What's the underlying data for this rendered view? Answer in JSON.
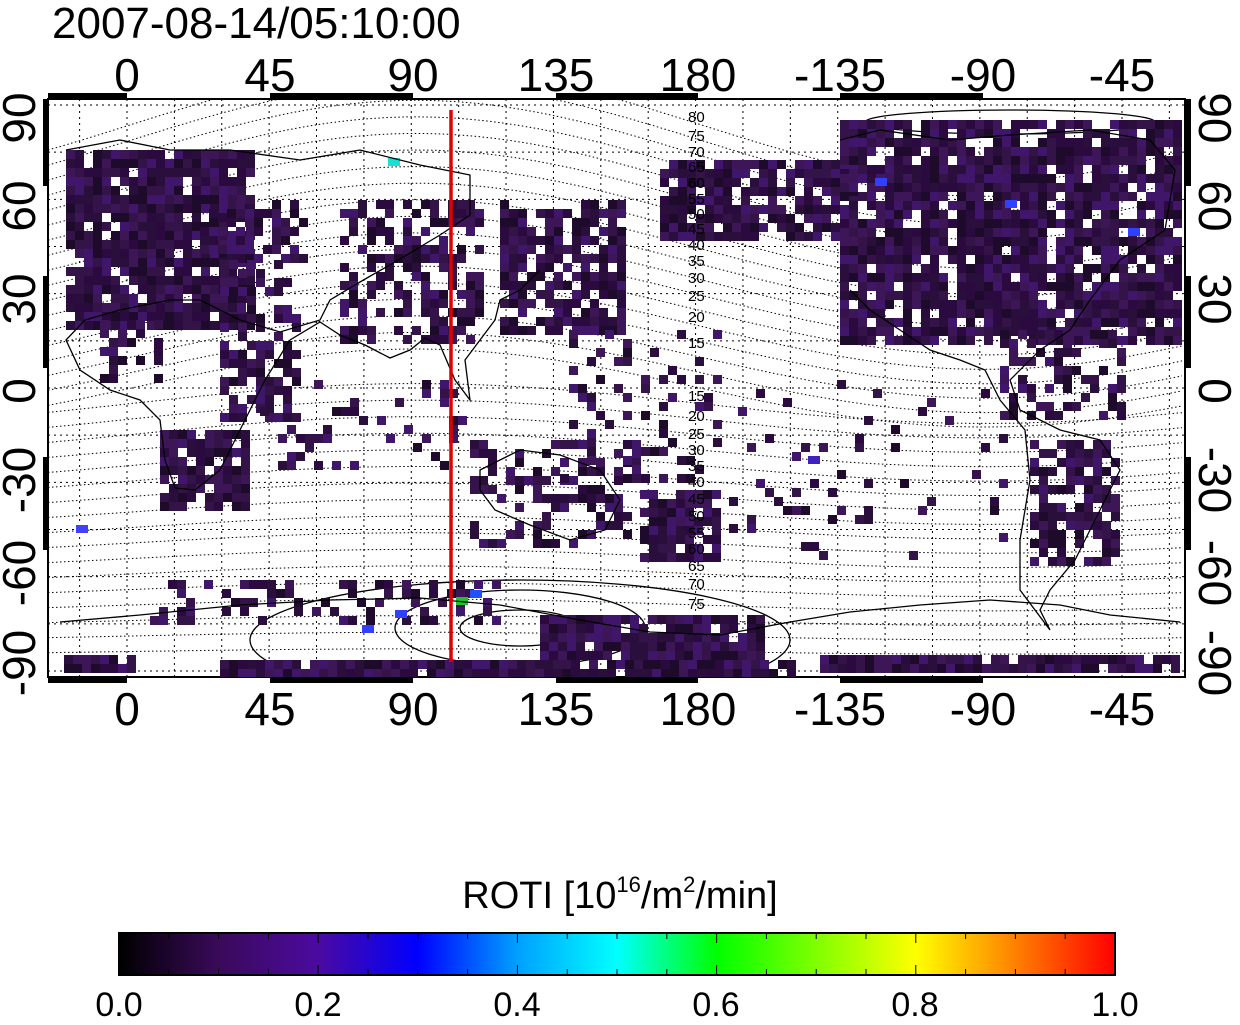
{
  "title": "2007-08-14/05:10:00",
  "map": {
    "top_ticks": [
      "0",
      "45",
      "90",
      "135",
      "180",
      "-135",
      "-90",
      "-45"
    ],
    "bottom_ticks": [
      "0",
      "45",
      "90",
      "135",
      "180",
      "-135",
      "-90",
      "-45"
    ],
    "left_ticks": [
      "90",
      "60",
      "30",
      "0",
      "-30",
      "-60",
      "-90"
    ],
    "right_ticks": [
      "90",
      "60",
      "30",
      "0",
      "-30",
      "-60",
      "-90"
    ],
    "magnetic_contour_labels": [
      "80",
      "75",
      "70",
      "65",
      "60",
      "55",
      "50",
      "45",
      "40",
      "35",
      "30",
      "25",
      "20",
      "15",
      "15",
      "20",
      "25",
      "30",
      "35",
      "40",
      "45",
      "50",
      "55",
      "60",
      "65",
      "70",
      "75"
    ],
    "meridian_marker_longitude": 102,
    "marker_color": "#e00000"
  },
  "colorbar": {
    "title_prefix": "ROTI  [10",
    "title_sup1": "16",
    "title_mid": "/m",
    "title_sup2": "2",
    "title_suffix": "/min]",
    "ticks": [
      "0.0",
      "0.2",
      "0.4",
      "0.6",
      "0.8",
      "1.0"
    ],
    "range": [
      0.0,
      1.0
    ],
    "colors": [
      "#000000",
      "#3a0a5a",
      "#4b0aa0",
      "#0000ff",
      "#00a0ff",
      "#00ffff",
      "#00ff00",
      "#80ff00",
      "#ffff00",
      "#ff8000",
      "#ff0000"
    ]
  }
}
